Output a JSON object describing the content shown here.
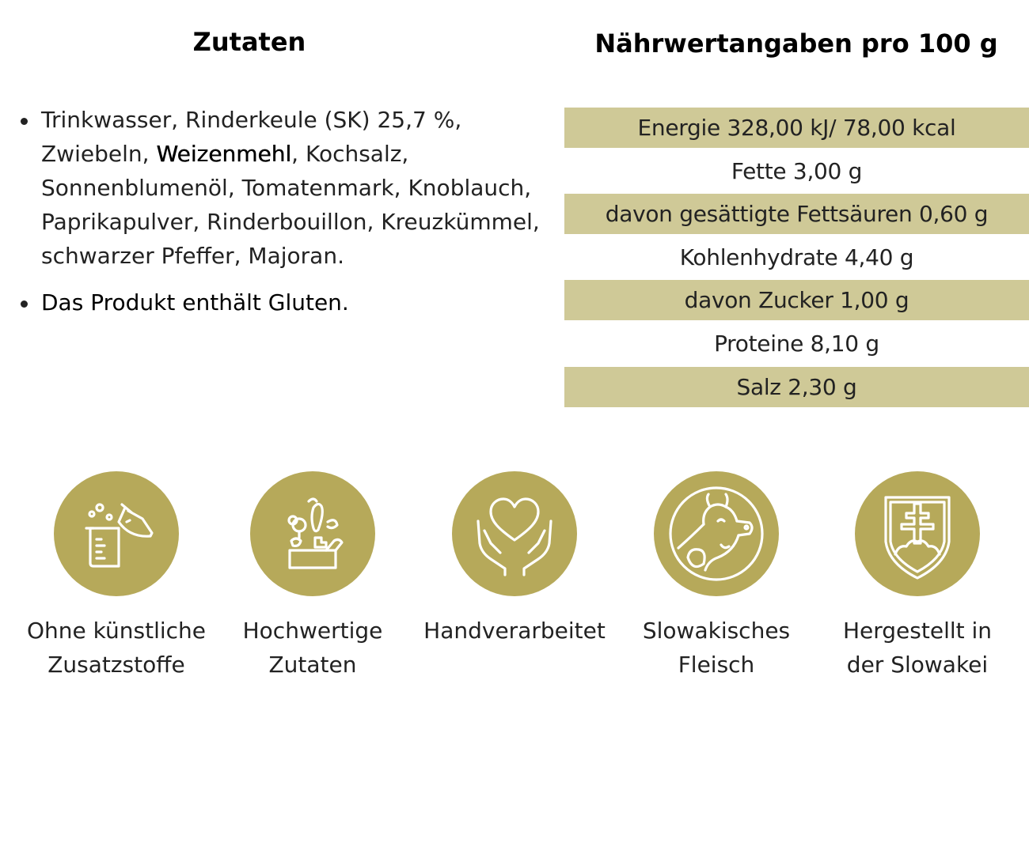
{
  "ingredients": {
    "heading": "Zutaten",
    "list_part1": "Trinkwasser, Rinderkeule (SK) 25,7 %, Zwiebeln, ",
    "allergen": "Weizenmehl",
    "list_part2": ", Kochsalz, Sonnenblumenöl, Tomatenmark, Knoblauch, Paprikapulver, Rinderbouillon, Kreuzkümmel, schwarzer Pfeffer, Majoran.",
    "note": "Das Produkt enthält Gluten."
  },
  "nutrition": {
    "heading": "Nährwertangaben pro 100 g",
    "rows": [
      "Energie 328,00 kJ/ 78,00 kcal",
      "Fette 3,00 g",
      "davon gesättigte Fettsäuren 0,60 g",
      "Kohlenhydrate 4,40 g",
      "davon Zucker 1,00 g",
      "Proteine 8,10 g",
      "Salz 2,30 g"
    ]
  },
  "features": [
    {
      "icon": "chemistry-lab-icon",
      "line1": "Ohne künstliche",
      "line2": "Zusatzstoffe"
    },
    {
      "icon": "vegetables-basket-icon",
      "line1": "Hochwertige",
      "line2": "Zutaten"
    },
    {
      "icon": "heart-in-hands-icon",
      "line1": "Handverarbeitet",
      "line2": ""
    },
    {
      "icon": "cow-head-icon",
      "line1": "Slowakisches",
      "line2": "Fleisch"
    },
    {
      "icon": "slovak-coat-of-arms-icon",
      "line1": "Hergestellt in",
      "line2": "der Slowakei"
    }
  ],
  "colors": {
    "badge": "#b6a95a",
    "table_shade": "#cfc997"
  }
}
